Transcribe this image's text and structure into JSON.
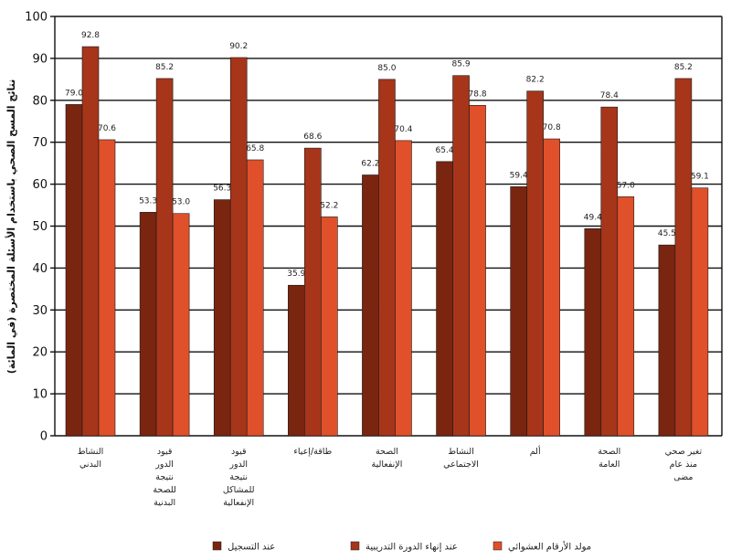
{
  "chart_data": {
    "type": "bar",
    "ylabel": "نتائج المسح الصحي باستخدام الأسئلة المختصرة (في المائة)",
    "ylim": [
      0,
      100
    ],
    "yticks": [
      0,
      10,
      20,
      30,
      40,
      50,
      60,
      70,
      80,
      90,
      100
    ],
    "grid": true,
    "legend_position": "bottom",
    "categories": [
      "النشاط\nالبدني",
      "قيود\nالدور\nنتيجة\nللصحة\nالبدنية",
      "قيود\nالدور\nنتيجة\nللمشاكل\nالإنفعالية",
      "طاقة/إعياء",
      "الصحة\nالإنفعالية",
      "النشاط\nالاجتماعي",
      "ألم",
      "الصحة\nالعامة",
      "تغير صحي\nمنذ عام\nمضى"
    ],
    "series": [
      {
        "name": "عند التسجيل",
        "color": "#7a2510",
        "values": [
          79.0,
          53.3,
          56.3,
          35.9,
          62.2,
          65.4,
          59.4,
          49.4,
          45.5
        ],
        "labels": [
          "79.0",
          "53.3",
          "56.3",
          "35.9",
          "62.2",
          "65.4",
          "59.4",
          "49.4",
          "45.5"
        ]
      },
      {
        "name": "عند إنهاء الدورة التدريبية",
        "color": "#a7351a",
        "values": [
          92.8,
          85.2,
          90.2,
          68.6,
          85.0,
          85.9,
          82.2,
          78.4,
          85.2
        ],
        "labels": [
          "92.8",
          "85.2",
          "90.2",
          "68.6",
          "85.0",
          "85.9",
          "82.2",
          "78.4",
          "85.2"
        ]
      },
      {
        "name": "مولد الأرقام العشوائي",
        "color": "#e0502a",
        "values": [
          70.6,
          53.0,
          65.8,
          52.2,
          70.4,
          78.8,
          70.8,
          57.0,
          59.1
        ],
        "labels": [
          "70.6",
          "53.0",
          "65.8",
          "52.2",
          "70.4",
          "78.8",
          "70.8",
          "57.0",
          "59.1"
        ]
      }
    ]
  }
}
